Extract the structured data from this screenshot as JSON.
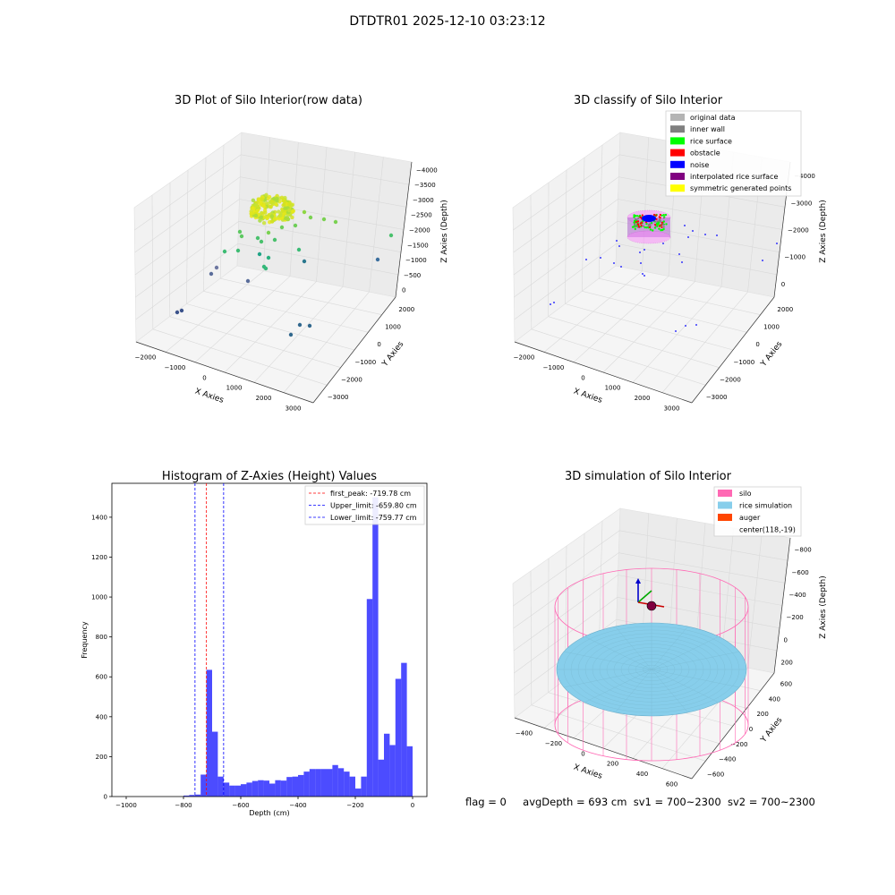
{
  "suptitle": "DTDTR01 2025-12-10 03:23:12",
  "info": {
    "flag": "flag = 0",
    "avg_depth": "avgDepth = 693 cm",
    "sv1": "sv1 = 700~2300",
    "sv2": "sv2 = 700~2300"
  },
  "panels": {
    "raw": {
      "title": "3D Plot of Silo Interior(row data)",
      "xlabel": "X Axies",
      "ylabel": "Y Axies",
      "zlabel": "Z Axies (Depth)",
      "xticks": [
        "−2000",
        "−1000",
        "0",
        "1000",
        "2000",
        "3000"
      ],
      "yticks": [
        "−3000",
        "−2000",
        "−1000",
        "0",
        "1000",
        "2000"
      ],
      "zticks": [
        "−4000",
        "−3500",
        "−3000",
        "−2500",
        "−2000",
        "−1500",
        "−1000",
        "−500",
        "0"
      ]
    },
    "classify": {
      "title": "3D classify of Silo Interior",
      "xlabel": "X Axies",
      "ylabel": "Y Axies",
      "zlabel": "Z Axies (Depth)",
      "xticks": [
        "−2000",
        "−1000",
        "0",
        "1000",
        "2000",
        "3000"
      ],
      "yticks": [
        "−3000",
        "−2000",
        "−1000",
        "0",
        "1000",
        "2000"
      ],
      "zticks": [
        "−4000",
        "−3000",
        "−2000",
        "−1000",
        "0"
      ],
      "legend": [
        {
          "label": "original data",
          "color": "#b4b4b4"
        },
        {
          "label": "inner wall",
          "color": "#808080"
        },
        {
          "label": "rice surface",
          "color": "#00ff00"
        },
        {
          "label": "obstacle",
          "color": "#ff0000"
        },
        {
          "label": "noise",
          "color": "#0000ff"
        },
        {
          "label": "interpolated rice surface",
          "color": "#800080"
        },
        {
          "label": "symmetric generated points",
          "color": "#ffff00"
        }
      ]
    },
    "simulation": {
      "title": "3D simulation of Silo Interior",
      "xlabel": "X Axies",
      "ylabel": "Y Axies",
      "zlabel": "Z Axies (Depth)",
      "xticks": [
        "−400",
        "−200",
        "0",
        "200",
        "400",
        "600"
      ],
      "yticks": [
        "−600",
        "−400",
        "−200",
        "0",
        "200",
        "400",
        "600"
      ],
      "zticks": [
        "−800",
        "−600",
        "−400",
        "−200",
        "0",
        "200"
      ],
      "legend": [
        {
          "label": "silo",
          "color": "#ff69b4"
        },
        {
          "label": "rice simulation",
          "color": "#87ceeb"
        },
        {
          "label": "auger",
          "color": "#ff4500"
        },
        {
          "label": "center(118,-19)",
          "color": ""
        }
      ]
    }
  },
  "chart_data": {
    "type": "bar",
    "title": "Histogram of Z-Axies (Height) Values",
    "xlabel": "Depth (cm)",
    "ylabel": "Frequency",
    "xlim": [
      -1050,
      50
    ],
    "ylim": [
      0,
      1570
    ],
    "xticks": [
      -1000,
      -800,
      -600,
      -400,
      -200,
      0
    ],
    "xtick_labels": [
      "−1000",
      "−800",
      "−600",
      "−400",
      "−200",
      "0"
    ],
    "yticks": [
      0,
      200,
      400,
      600,
      800,
      1000,
      1200,
      1400
    ],
    "bar_color": "#0000ff",
    "bins": [
      {
        "x0": -800,
        "x1": -780,
        "count": 5
      },
      {
        "x0": -780,
        "x1": -760,
        "count": 8
      },
      {
        "x0": -760,
        "x1": -740,
        "count": 10
      },
      {
        "x0": -740,
        "x1": -720,
        "count": 110
      },
      {
        "x0": -720,
        "x1": -700,
        "count": 635
      },
      {
        "x0": -700,
        "x1": -680,
        "count": 325
      },
      {
        "x0": -680,
        "x1": -660,
        "count": 100
      },
      {
        "x0": -660,
        "x1": -640,
        "count": 70
      },
      {
        "x0": -640,
        "x1": -620,
        "count": 55
      },
      {
        "x0": -620,
        "x1": -600,
        "count": 55
      },
      {
        "x0": -600,
        "x1": -580,
        "count": 62
      },
      {
        "x0": -580,
        "x1": -560,
        "count": 70
      },
      {
        "x0": -560,
        "x1": -540,
        "count": 78
      },
      {
        "x0": -540,
        "x1": -520,
        "count": 82
      },
      {
        "x0": -520,
        "x1": -500,
        "count": 80
      },
      {
        "x0": -500,
        "x1": -480,
        "count": 65
      },
      {
        "x0": -480,
        "x1": -460,
        "count": 82
      },
      {
        "x0": -460,
        "x1": -440,
        "count": 80
      },
      {
        "x0": -440,
        "x1": -420,
        "count": 98
      },
      {
        "x0": -420,
        "x1": -400,
        "count": 100
      },
      {
        "x0": -400,
        "x1": -380,
        "count": 108
      },
      {
        "x0": -380,
        "x1": -360,
        "count": 125
      },
      {
        "x0": -360,
        "x1": -340,
        "count": 138
      },
      {
        "x0": -340,
        "x1": -320,
        "count": 138
      },
      {
        "x0": -320,
        "x1": -300,
        "count": 138
      },
      {
        "x0": -300,
        "x1": -280,
        "count": 138
      },
      {
        "x0": -280,
        "x1": -260,
        "count": 158
      },
      {
        "x0": -260,
        "x1": -240,
        "count": 142
      },
      {
        "x0": -240,
        "x1": -220,
        "count": 125
      },
      {
        "x0": -220,
        "x1": -200,
        "count": 100
      },
      {
        "x0": -200,
        "x1": -180,
        "count": 40
      },
      {
        "x0": -180,
        "x1": -160,
        "count": 100
      },
      {
        "x0": -160,
        "x1": -140,
        "count": 990
      },
      {
        "x0": -140,
        "x1": -120,
        "count": 1500
      },
      {
        "x0": -120,
        "x1": -100,
        "count": 185
      },
      {
        "x0": -100,
        "x1": -80,
        "count": 315
      },
      {
        "x0": -80,
        "x1": -60,
        "count": 258
      },
      {
        "x0": -60,
        "x1": -40,
        "count": 590
      },
      {
        "x0": -40,
        "x1": -20,
        "count": 670
      },
      {
        "x0": -20,
        "x1": 0,
        "count": 252
      }
    ],
    "vlines": [
      {
        "x": -719.78,
        "color": "#ff0000",
        "label": "first_peak: -719.78 cm"
      },
      {
        "x": -659.8,
        "color": "#0000ff",
        "label": "Upper_limit: -659.80 cm"
      },
      {
        "x": -759.77,
        "color": "#0000ff",
        "label": "Lower_limit: -759.77 cm"
      }
    ]
  }
}
